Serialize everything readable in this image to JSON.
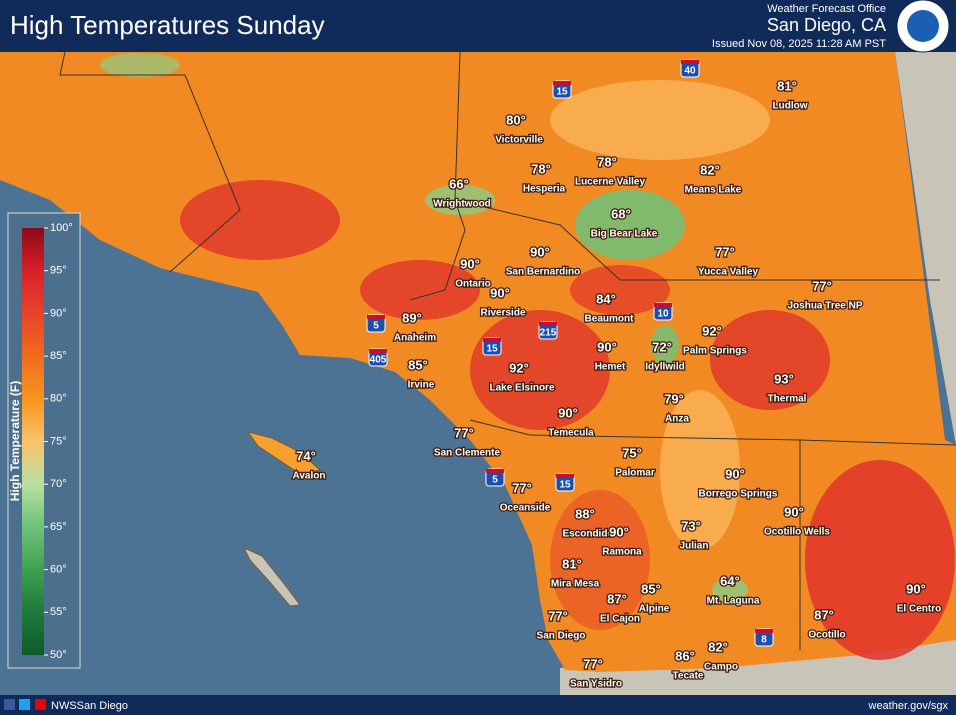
{
  "header": {
    "title": "High Temperatures Sunday",
    "office": "Weather Forecast Office",
    "location": "San Diego, CA",
    "issued": "Issued Nov 08, 2025 11:28 AM PST"
  },
  "legend": {
    "title": "High Temperature (F)",
    "ticks": [
      "100°",
      "95°",
      "90°",
      "85°",
      "80°",
      "75°",
      "70°",
      "65°",
      "60°",
      "55°",
      "50°"
    ]
  },
  "cities": [
    {
      "name": "Victorville",
      "temp": "80°"
    },
    {
      "name": "Hesperia",
      "temp": "78°"
    },
    {
      "name": "Lucerne Valley",
      "temp": "78°"
    },
    {
      "name": "Means Lake",
      "temp": "82°"
    },
    {
      "name": "Ludlow",
      "temp": "81°"
    },
    {
      "name": "Wrightwood",
      "temp": "66°"
    },
    {
      "name": "Big Bear Lake",
      "temp": "68°"
    },
    {
      "name": "Yucca Valley",
      "temp": "77°"
    },
    {
      "name": "Joshua Tree NP",
      "temp": "77°"
    },
    {
      "name": "San Bernardino",
      "temp": "90°"
    },
    {
      "name": "Ontario",
      "temp": "90°"
    },
    {
      "name": "Riverside",
      "temp": "90°"
    },
    {
      "name": "Beaumont",
      "temp": "84°"
    },
    {
      "name": "Anaheim",
      "temp": "89°"
    },
    {
      "name": "Palm Springs",
      "temp": "92°"
    },
    {
      "name": "Irvine",
      "temp": "85°"
    },
    {
      "name": "Hemet",
      "temp": "90°"
    },
    {
      "name": "Idyllwild",
      "temp": "72°"
    },
    {
      "name": "Lake Elsinore",
      "temp": "92°"
    },
    {
      "name": "Thermal",
      "temp": "93°"
    },
    {
      "name": "Anza",
      "temp": "79°"
    },
    {
      "name": "Temecula",
      "temp": "90°"
    },
    {
      "name": "Avalon",
      "temp": "74°"
    },
    {
      "name": "San Clemente",
      "temp": "77°"
    },
    {
      "name": "Palomar",
      "temp": "75°"
    },
    {
      "name": "Borrego Springs",
      "temp": "90°"
    },
    {
      "name": "Oceanside",
      "temp": "77°"
    },
    {
      "name": "Escondido",
      "temp": "88°"
    },
    {
      "name": "Ocotillo Wells",
      "temp": "90°"
    },
    {
      "name": "Ramona",
      "temp": "90°"
    },
    {
      "name": "Julian",
      "temp": "73°"
    },
    {
      "name": "Mira Mesa",
      "temp": "81°"
    },
    {
      "name": "Mt. Laguna",
      "temp": "64°"
    },
    {
      "name": "Alpine",
      "temp": "85°"
    },
    {
      "name": "El Cajon",
      "temp": "87°"
    },
    {
      "name": "El Centro",
      "temp": "90°"
    },
    {
      "name": "Ocotillo",
      "temp": "87°"
    },
    {
      "name": "San Diego",
      "temp": "77°"
    },
    {
      "name": "Campo",
      "temp": "82°"
    },
    {
      "name": "Tecate",
      "temp": "86°"
    },
    {
      "name": "San Ysidro",
      "temp": "77°"
    }
  ],
  "highways": [
    "40",
    "15",
    "10",
    "215",
    "5",
    "405",
    "15",
    "5",
    "15",
    "8"
  ],
  "footer": {
    "social": "NWSSan Diego",
    "website": "weather.gov/sgx"
  }
}
